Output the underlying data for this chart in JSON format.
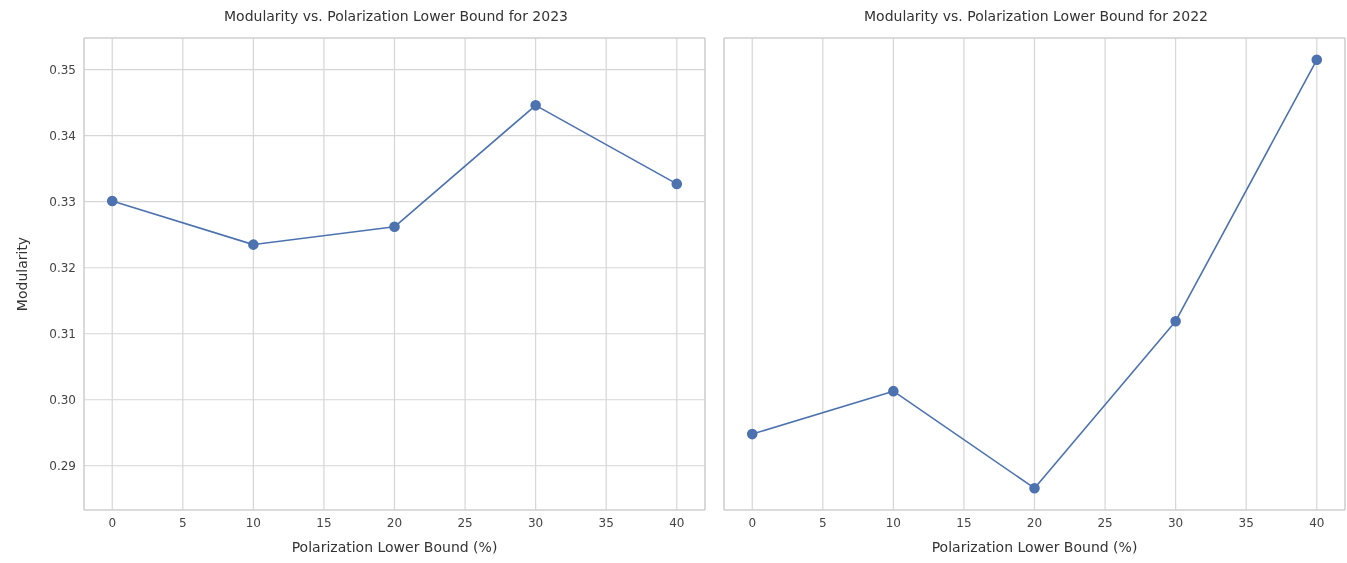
{
  "chart_data": [
    {
      "type": "line",
      "title": "Modularity vs. Polarization Lower Bound for 2023",
      "xlabel": "Polarization Lower Bound (%)",
      "ylabel": "Modularity",
      "x": [
        0,
        10,
        20,
        30,
        40
      ],
      "series": [
        {
          "color": "#4c72b0",
          "values": [
            0.3301,
            0.3235,
            0.3262,
            0.3446,
            0.3327
          ]
        }
      ],
      "xlim": [
        -2,
        42
      ],
      "xticks": [
        0,
        5,
        10,
        15,
        20,
        25,
        30,
        35,
        40
      ],
      "ylim": [
        0.2833,
        0.3548
      ],
      "yticks": [
        0.29,
        {
          "value": 0.3,
          "label": "0.30"
        },
        0.31,
        0.32,
        0.33,
        0.34,
        0.35
      ],
      "grid": true,
      "marker": "circle",
      "line_style": "solid",
      "legend": false
    },
    {
      "type": "line",
      "title": "Modularity vs. Polarization Lower Bound for 2022",
      "xlabel": "Polarization Lower Bound (%)",
      "x": [
        0,
        10,
        20,
        30,
        40
      ],
      "series": [
        {
          "color": "#4c72b0",
          "values": [
            0.2948,
            0.3013,
            0.2866,
            0.3119,
            0.3515
          ]
        }
      ],
      "xlim": [
        -2,
        42
      ],
      "xticks": [
        0,
        5,
        10,
        15,
        20,
        25,
        30,
        35,
        40
      ],
      "ylim": [
        0.2833,
        0.3548
      ],
      "yticks": [
        0.29,
        0.3,
        0.31,
        0.32,
        0.33,
        0.34,
        0.35
      ],
      "grid": true,
      "marker": "circle",
      "line_style": "solid",
      "legend": false,
      "tick_labels": "x"
    }
  ]
}
